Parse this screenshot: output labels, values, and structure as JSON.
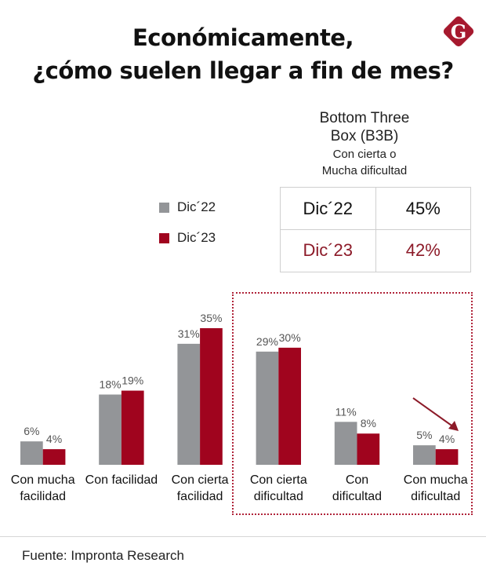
{
  "title": {
    "line1": "Económicamente,",
    "line2": "¿cómo suelen llegar a fin de mes?"
  },
  "logo": {
    "letter": "G",
    "icon": "brand-logo-g",
    "color": "#a6192e"
  },
  "colors": {
    "dic22": "#939598",
    "dic23": "#a0041e",
    "dic23_text": "#8c1a28"
  },
  "legend": [
    {
      "label": "Dic´22",
      "color": "#939598"
    },
    {
      "label": "Dic´23",
      "color": "#a0041e"
    }
  ],
  "b3b": {
    "heading_line1": "Bottom Three",
    "heading_line2": "Box (B3B)",
    "sub_line1": "Con cierta o",
    "sub_line2": "Mucha dificultad",
    "rows": [
      {
        "period": "Dic´22",
        "value": "45%"
      },
      {
        "period": "Dic´23",
        "value": "42%"
      }
    ]
  },
  "footer": {
    "source": "Fuente: Impronta Research"
  },
  "chart_data": {
    "type": "bar",
    "title": "Económicamente, ¿cómo suelen llegar a fin de mes?",
    "xlabel": "",
    "ylabel": "",
    "ylim": [
      0,
      35
    ],
    "grid": false,
    "legend_position": "top-left",
    "categories": [
      [
        "Con mucha",
        "facilidad"
      ],
      [
        "Con facilidad"
      ],
      [
        "Con cierta",
        "facilidad"
      ],
      [
        "Con cierta",
        "dificultad"
      ],
      [
        "Con",
        "dificultad"
      ],
      [
        "Con mucha",
        "dificultad"
      ]
    ],
    "series": [
      {
        "name": "Dic´22",
        "values": [
          6,
          18,
          31,
          29,
          11,
          5
        ],
        "labels": [
          "6%",
          "18%",
          "31%",
          "29%",
          "11%",
          "5%"
        ]
      },
      {
        "name": "Dic´23",
        "values": [
          4,
          19,
          35,
          30,
          8,
          4
        ],
        "labels": [
          "4%",
          "19%",
          "35%",
          "30%",
          "8%",
          "4%"
        ]
      }
    ],
    "highlighted_categories": [
      "Con cierta dificultad",
      "Con dificultad",
      "Con mucha dificultad"
    ],
    "annotations": [
      {
        "type": "arrow",
        "category": "Con mucha dificultad",
        "direction": "down-right"
      }
    ]
  }
}
